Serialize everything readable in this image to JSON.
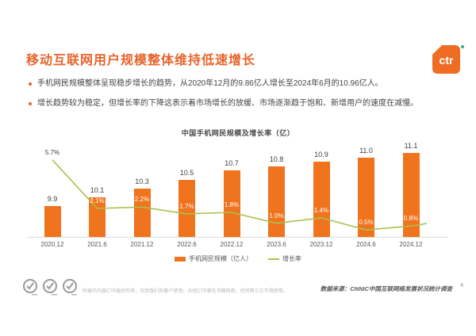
{
  "header": {
    "title": "移动互联网用户规模整体维持低速增长",
    "logo_text": "ctr"
  },
  "bullets": [
    "手机网民规模整体呈现稳步增长的趋势，从2020年12月的9.86亿人增长至2024年6月的10.96亿人。",
    "增长趋势较为稳定，但增长率的下降这表示着市场增长的放缓、市场逐渐趋于饱和、新增用户的速度在减慢。"
  ],
  "chart_data": {
    "type": "bar",
    "title": "中国手机网民规模及增长率（亿）",
    "categories": [
      "2020.12",
      "2021.6",
      "2021.12",
      "2022.6",
      "2022.12",
      "2023.6",
      "2023.12",
      "2024.6",
      "2024.12"
    ],
    "series": [
      {
        "name": "手机网民规模（亿人）",
        "type": "bar",
        "values": [
          9.9,
          10.1,
          10.3,
          10.5,
          10.7,
          10.8,
          10.9,
          11.0,
          11.1
        ],
        "color": "#f0731d"
      },
      {
        "name": "增长率",
        "type": "line",
        "values_pct": [
          5.7,
          2.1,
          2.2,
          1.7,
          1.8,
          1.0,
          1.4,
          0.5,
          0.8
        ],
        "labels": [
          "5.7%",
          "2.1%",
          "2.2%",
          "1.7%",
          "1.8%",
          "1.0%",
          "1.4%",
          "0.5%",
          "0.8%"
        ],
        "color": "#a9c24d"
      }
    ],
    "legend": [
      "手机网民规模（亿人）",
      "增长率"
    ],
    "legend_position": "bottom",
    "grid": false,
    "value_axis_hidden": true
  },
  "footer": {
    "disclaimer": "所展示内容CTR版权所有，仅供我们的客户使用；未经CTR事先书面同意，任何第三方不得使用。",
    "source": "数据来源：CNNIC中国互联网络发展状况统计调查",
    "page_number": "4"
  },
  "colors": {
    "accent_orange": "#e8632a",
    "bar_orange": "#f0731d",
    "line_green": "#a9c24d"
  }
}
